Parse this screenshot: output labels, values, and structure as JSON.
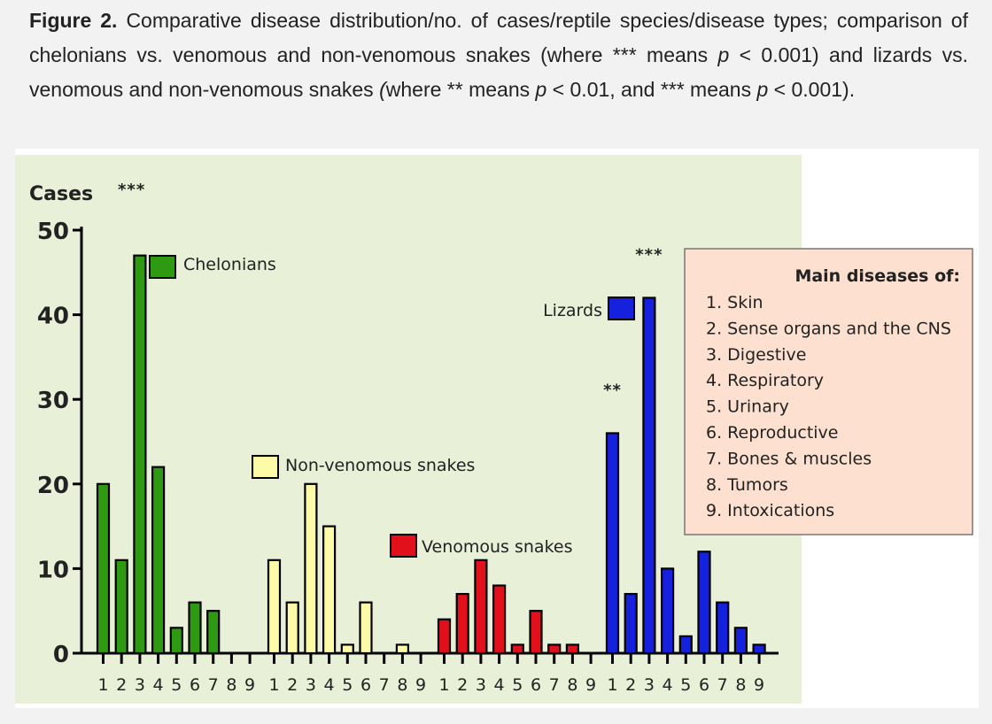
{
  "caption": {
    "label": "Figure 2.",
    "text_a": " Comparative disease distribution/no. of cases/reptile species/disease types; comparison of chelonians vs. venomous and non-venomous snakes (where *** means ",
    "p1": "p",
    "text_b": " < 0.001) and lizards vs. venomous and non-venomous snakes ",
    "paren": "(",
    "text_c": "where ** means ",
    "p2": "p",
    "text_d": " < 0.01, and *** means ",
    "p3": "p",
    "text_e": " < 0.001)."
  },
  "chart_data": {
    "type": "bar",
    "ylabel": "Cases",
    "ylim": [
      0,
      50
    ],
    "yticks": [
      0,
      10,
      20,
      30,
      40,
      50
    ],
    "categories": [
      "1",
      "2",
      "3",
      "4",
      "5",
      "6",
      "7",
      "8",
      "9"
    ],
    "series": [
      {
        "name": "Chelonians",
        "color": "#2e9a12",
        "values": [
          20,
          11,
          47,
          22,
          3,
          6,
          5,
          0,
          0
        ],
        "significance": "***"
      },
      {
        "name": "Non-venomous snakes",
        "color": "#fdfaa8",
        "values": [
          11,
          6,
          20,
          15,
          1,
          6,
          0,
          1,
          0
        ],
        "significance": ""
      },
      {
        "name": "Venomous snakes",
        "color": "#e2101a",
        "values": [
          4,
          7,
          11,
          8,
          1,
          5,
          1,
          1,
          0
        ],
        "significance": ""
      },
      {
        "name": "Lizards",
        "color": "#1521dc",
        "values": [
          26,
          7,
          42,
          10,
          2,
          12,
          6,
          3,
          1
        ],
        "significance": ""
      }
    ],
    "bar_annotations": [
      {
        "series": "Lizards",
        "category": "1",
        "text": "**"
      },
      {
        "series": "Lizards",
        "category": "3",
        "text": "***"
      }
    ],
    "legend": {
      "title": "Main diseases of:",
      "items": [
        "1. Skin",
        "2. Sense organs and the CNS",
        "3. Digestive",
        "4. Respiratory",
        "5. Urinary",
        "6. Reproductive",
        "7. Bones & muscles",
        "8. Tumors",
        "9. Intoxications"
      ]
    },
    "colors": {
      "plot_background": "#e8f0d8",
      "legend_background": "#fde0cf",
      "legend_border": "#777777",
      "axis": "#000000"
    }
  }
}
